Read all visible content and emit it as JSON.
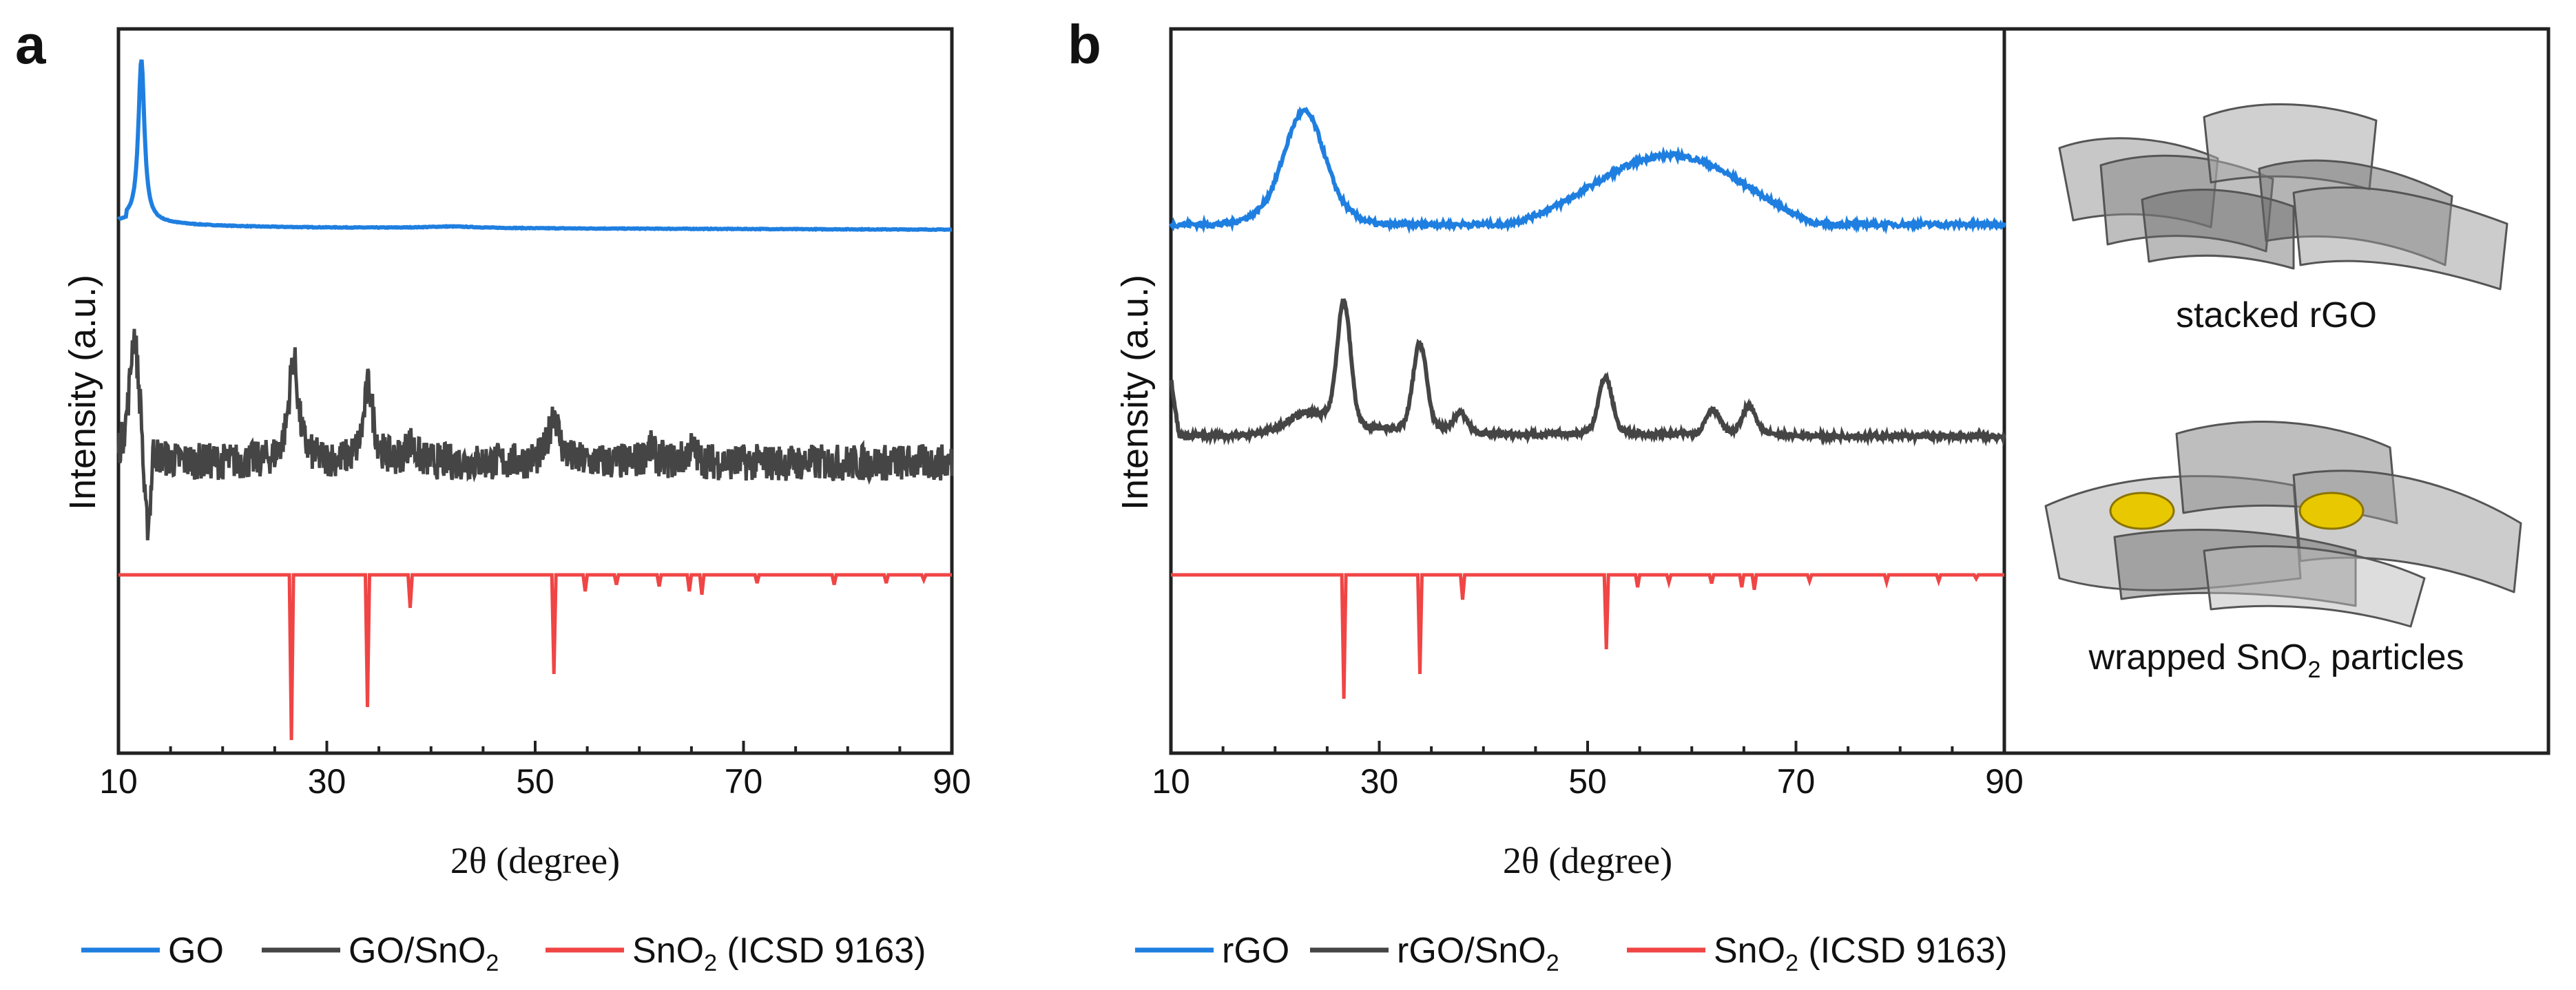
{
  "colors": {
    "go": "#1f7fe0",
    "composite": "#454545",
    "ref": "#f04545",
    "particle": "#e8c800"
  },
  "chart_data": [
    {
      "panel": "a",
      "type": "line",
      "xlabel": "2θ (degree)",
      "ylabel": "Intensity (a.u.)",
      "xlim": [
        10,
        90
      ],
      "xticks": [
        10,
        30,
        50,
        70,
        90
      ],
      "series": [
        {
          "name": "GO",
          "role": "go",
          "baseline": 0.0,
          "peaks": [
            [
              12.2,
              1.0
            ]
          ]
        },
        {
          "name": "GO/SnO2",
          "role": "composite",
          "baseline": 0.45,
          "peaks": [
            [
              11.5,
              0.55
            ],
            [
              26.8,
              0.45
            ],
            [
              34.0,
              0.33
            ],
            [
              51.8,
              0.22
            ],
            [
              38.0,
              0.08
            ],
            [
              61.0,
              0.06
            ],
            [
              65.0,
              0.06
            ]
          ]
        },
        {
          "name": "SnO2 (ICSD 9163)",
          "role": "ref",
          "peaks": [
            [
              26.6,
              1.0
            ],
            [
              33.9,
              0.8
            ],
            [
              38.0,
              0.2
            ],
            [
              51.8,
              0.6
            ],
            [
              54.8,
              0.1
            ],
            [
              57.8,
              0.06
            ],
            [
              61.9,
              0.07
            ],
            [
              64.8,
              0.1
            ],
            [
              66.0,
              0.12
            ],
            [
              71.3,
              0.05
            ],
            [
              78.7,
              0.06
            ],
            [
              83.7,
              0.05
            ],
            [
              87.3,
              0.03
            ]
          ]
        }
      ],
      "legend": [
        "GO",
        "GO/SnO2",
        "SnO2 (ICSD 9163)"
      ]
    },
    {
      "panel": "b",
      "type": "line",
      "xlabel": "2θ (degree)",
      "ylabel": "Intensity (a.u.)",
      "xlim": [
        10,
        90
      ],
      "xticks": [
        10,
        30,
        50,
        70,
        90
      ],
      "series": [
        {
          "name": "rGO",
          "role": "go",
          "baseline": 0.0,
          "peaks": [
            [
              22.8,
              1.0
            ],
            [
              58.0,
              0.52
            ]
          ]
        },
        {
          "name": "rGO/SnO2",
          "role": "composite",
          "baseline": 0.0,
          "peaks": [
            [
              26.6,
              1.0
            ],
            [
              33.9,
              0.7
            ],
            [
              37.8,
              0.15
            ],
            [
              51.7,
              0.45
            ],
            [
              62.0,
              0.2
            ],
            [
              65.5,
              0.22
            ]
          ]
        },
        {
          "name": "SnO2 (ICSD 9163)",
          "role": "ref",
          "peaks": [
            [
              26.6,
              1.0
            ],
            [
              33.9,
              0.8
            ],
            [
              38.0,
              0.2
            ],
            [
              51.8,
              0.6
            ],
            [
              54.8,
              0.1
            ],
            [
              57.8,
              0.06
            ],
            [
              61.9,
              0.07
            ],
            [
              64.8,
              0.1
            ],
            [
              66.0,
              0.12
            ],
            [
              71.3,
              0.05
            ],
            [
              78.7,
              0.06
            ],
            [
              83.7,
              0.05
            ],
            [
              87.3,
              0.03
            ]
          ]
        }
      ],
      "legend": [
        "rGO",
        "rGO/SnO2",
        "SnO2 (ICSD 9163)"
      ]
    }
  ],
  "text": {
    "panel_a": "a",
    "panel_b": "b",
    "inset_top": "stacked rGO",
    "inset_bottom_pre": "wrapped SnO",
    "inset_bottom_sub": "2",
    "inset_bottom_post": " particles",
    "legend_a": [
      {
        "main": "GO",
        "sub": "",
        "post": ""
      },
      {
        "main": "GO/SnO",
        "sub": "2",
        "post": ""
      },
      {
        "main": "SnO",
        "sub": "2",
        "post": " (ICSD 9163)"
      }
    ],
    "legend_b": [
      {
        "main": "rGO",
        "sub": "",
        "post": ""
      },
      {
        "main": "rGO/SnO",
        "sub": "2",
        "post": ""
      },
      {
        "main": "SnO",
        "sub": "2",
        "post": " (ICSD 9163)"
      }
    ]
  }
}
